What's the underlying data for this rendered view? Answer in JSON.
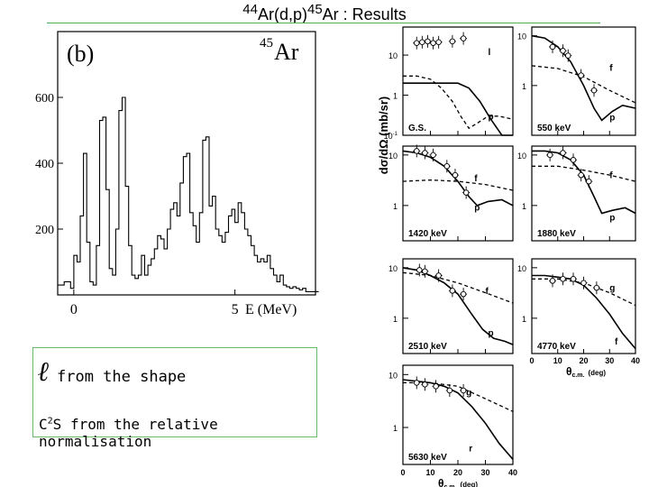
{
  "title": {
    "pre": "44",
    "a": "Ar(d,p)",
    "sup": "45",
    "b": "Ar : Results"
  },
  "notes": {
    "l_symbol": "ℓ",
    "l_text": "from the shape",
    "c2s_pre": "C",
    "c2s_sup": "2",
    "c2s_text": "S from the relative normalisation"
  },
  "colors": {
    "accent": "#4caf50"
  },
  "chart_data": [
    {
      "type": "line",
      "panel_label": "(b)",
      "isotope": {
        "mass": "45",
        "element": "Ar"
      },
      "xlabel": "E (MeV)",
      "x_ticks": [
        "0",
        "5"
      ],
      "y_ticks": [
        200,
        400,
        600
      ],
      "xlim": [
        -0.5,
        7.5
      ],
      "ylim": [
        0,
        800
      ],
      "series": [
        {
          "x": [
            -0.5,
            -0.3,
            -0.1,
            0.0,
            0.1,
            0.2,
            0.3,
            0.4,
            0.5,
            0.6,
            0.7,
            0.8,
            0.9,
            1.0,
            1.1,
            1.2,
            1.3,
            1.4,
            1.5,
            1.6,
            1.7,
            1.8,
            1.9,
            2.0,
            2.1,
            2.2,
            2.3,
            2.4,
            2.5,
            2.6,
            2.7,
            2.8,
            2.9,
            3.0,
            3.1,
            3.2,
            3.3,
            3.4,
            3.5,
            3.6,
            3.7,
            3.8,
            3.9,
            4.0,
            4.1,
            4.2,
            4.3,
            4.4,
            4.5,
            4.6,
            4.7,
            4.8,
            4.9,
            5.0,
            5.1,
            5.2,
            5.3,
            5.4,
            5.5,
            5.6,
            5.7,
            5.8,
            5.9,
            6.0,
            6.1,
            6.2,
            6.3,
            6.4,
            6.5,
            6.6,
            6.7,
            6.8,
            6.9,
            7.0,
            7.1,
            7.2,
            7.3,
            7.4
          ],
          "y": [
            30,
            40,
            20,
            120,
            100,
            240,
            430,
            160,
            40,
            30,
            150,
            530,
            540,
            320,
            80,
            60,
            200,
            560,
            600,
            330,
            150,
            60,
            50,
            60,
            120,
            60,
            90,
            110,
            140,
            180,
            170,
            140,
            200,
            260,
            280,
            240,
            340,
            420,
            430,
            250,
            210,
            160,
            250,
            470,
            480,
            270,
            300,
            200,
            180,
            160,
            190,
            240,
            260,
            220,
            280,
            250,
            200,
            180,
            150,
            120,
            100,
            110,
            100,
            120,
            80,
            60,
            40,
            60,
            30,
            25,
            20,
            25,
            20,
            15,
            20,
            10,
            10,
            10
          ]
        }
      ]
    },
    {
      "type": "scatter",
      "ylabel": "dσ/dΩ (mb/sr)",
      "xlabel_sym": "θ",
      "xlabel_sub": "c.m.",
      "xlabel_unit": "(deg)",
      "x_ticks": [
        0,
        10,
        20,
        30,
        40
      ],
      "xlim": [
        0,
        40
      ],
      "y_scale": "log",
      "panels": [
        {
          "state": "G.S.",
          "ylim": [
            0.1,
            50
          ],
          "y_ticks": [
            "10",
            "1",
            "10^-1"
          ],
          "curve_labels": [
            {
              "text": "l",
              "x": 31,
              "y": 10
            },
            {
              "text": "p",
              "x": 31,
              "y": 0.25
            }
          ],
          "solid": [
            [
              0,
              2.0
            ],
            [
              5,
              2.0
            ],
            [
              10,
              2.0
            ],
            [
              15,
              2.0
            ],
            [
              20,
              2.0
            ],
            [
              24,
              1.5
            ],
            [
              28,
              0.7
            ],
            [
              32,
              0.25
            ],
            [
              36,
              0.1
            ],
            [
              40,
              0.1
            ]
          ],
          "dashed": [
            [
              0,
              3.0
            ],
            [
              5,
              3.0
            ],
            [
              10,
              2.5
            ],
            [
              14,
              1.5
            ],
            [
              18,
              0.7
            ],
            [
              21,
              0.3
            ],
            [
              24,
              0.15
            ],
            [
              27,
              0.2
            ],
            [
              31,
              0.3
            ],
            [
              35,
              0.3
            ],
            [
              40,
              0.25
            ]
          ],
          "points": [
            [
              5,
              20
            ],
            [
              7,
              21
            ],
            [
              9,
              22
            ],
            [
              11,
              20
            ],
            [
              13,
              21
            ],
            [
              18,
              22
            ],
            [
              22,
              26
            ]
          ]
        },
        {
          "state": "550 keV",
          "ylim": [
            0.1,
            15
          ],
          "y_ticks": [
            "10",
            "1"
          ],
          "curve_labels": [
            {
              "text": "f",
              "x": 30,
              "y": 2.0
            },
            {
              "text": "p",
              "x": 30,
              "y": 0.2
            }
          ],
          "solid": [
            [
              0,
              10
            ],
            [
              5,
              9
            ],
            [
              10,
              6
            ],
            [
              15,
              3
            ],
            [
              20,
              1.0
            ],
            [
              24,
              0.35
            ],
            [
              27,
              0.2
            ],
            [
              31,
              0.3
            ],
            [
              35,
              0.4
            ],
            [
              40,
              0.35
            ]
          ],
          "dashed": [
            [
              0,
              2.5
            ],
            [
              10,
              2.2
            ],
            [
              20,
              1.5
            ],
            [
              25,
              1.1
            ],
            [
              30,
              0.8
            ],
            [
              35,
              0.6
            ],
            [
              40,
              0.45
            ]
          ],
          "points": [
            [
              8,
              6
            ],
            [
              12,
              5
            ],
            [
              14,
              4
            ],
            [
              19,
              1.6
            ],
            [
              24,
              0.8
            ]
          ]
        },
        {
          "state": "1420 keV",
          "ylim": [
            0.2,
            15
          ],
          "y_ticks": [
            "10",
            "1"
          ],
          "curve_labels": [
            {
              "text": "f",
              "x": 26,
              "y": 3.0
            },
            {
              "text": "p",
              "x": 26,
              "y": 0.8
            }
          ],
          "solid": [
            [
              0,
              12
            ],
            [
              5,
              11
            ],
            [
              10,
              9
            ],
            [
              15,
              6
            ],
            [
              20,
              3
            ],
            [
              24,
              1.5
            ],
            [
              27,
              1.0
            ],
            [
              31,
              1.2
            ],
            [
              36,
              1.3
            ],
            [
              40,
              1.0
            ]
          ],
          "dashed": [
            [
              0,
              3.0
            ],
            [
              10,
              3.2
            ],
            [
              20,
              3.0
            ],
            [
              30,
              2.6
            ],
            [
              40,
              2.0
            ]
          ],
          "points": [
            [
              5,
              12
            ],
            [
              8,
              11
            ],
            [
              11,
              10
            ],
            [
              16,
              6
            ],
            [
              19,
              4
            ],
            [
              23,
              1.8
            ]
          ]
        },
        {
          "state": "1880 keV",
          "ylim": [
            0.2,
            15
          ],
          "y_ticks": [
            "10",
            "1"
          ],
          "curve_labels": [
            {
              "text": "f",
              "x": 30,
              "y": 3.5
            },
            {
              "text": "p",
              "x": 30,
              "y": 0.5
            }
          ],
          "solid": [
            [
              0,
              12
            ],
            [
              5,
              12
            ],
            [
              10,
              11
            ],
            [
              15,
              8
            ],
            [
              20,
              4
            ],
            [
              24,
              1.5
            ],
            [
              27,
              0.7
            ],
            [
              31,
              0.8
            ],
            [
              36,
              0.9
            ],
            [
              40,
              0.7
            ]
          ],
          "dashed": [
            [
              0,
              6
            ],
            [
              10,
              6
            ],
            [
              20,
              5
            ],
            [
              30,
              4
            ],
            [
              40,
              3
            ]
          ],
          "points": [
            [
              7,
              10
            ],
            [
              12,
              11
            ],
            [
              16,
              8
            ],
            [
              19,
              4
            ],
            [
              22,
              3
            ]
          ]
        },
        {
          "state": "2510 keV",
          "ylim": [
            0.2,
            15
          ],
          "y_ticks": [
            "10",
            "1"
          ],
          "curve_labels": [
            {
              "text": "f",
              "x": 30,
              "y": 3.0
            },
            {
              "text": "p",
              "x": 31,
              "y": 0.45
            }
          ],
          "solid": [
            [
              0,
              10
            ],
            [
              5,
              9
            ],
            [
              10,
              7
            ],
            [
              15,
              5
            ],
            [
              20,
              3
            ],
            [
              25,
              1.2
            ],
            [
              29,
              0.6
            ],
            [
              33,
              0.4
            ],
            [
              37,
              0.35
            ],
            [
              40,
              0.3
            ]
          ],
          "dashed": [
            [
              0,
              8
            ],
            [
              10,
              7
            ],
            [
              20,
              5
            ],
            [
              30,
              3.2
            ],
            [
              40,
              2.0
            ]
          ],
          "points": [
            [
              6,
              9
            ],
            [
              8,
              8.5
            ],
            [
              13,
              7
            ],
            [
              18,
              3.5
            ],
            [
              22,
              3
            ]
          ]
        },
        {
          "state": "4770 keV",
          "ylim": [
            0.2,
            15
          ],
          "y_ticks": [
            "10",
            "1"
          ],
          "curve_labels": [
            {
              "text": "g",
              "x": 30,
              "y": 3.5
            },
            {
              "text": "f",
              "x": 32,
              "y": 0.3
            }
          ],
          "solid": [
            [
              0,
              7
            ],
            [
              5,
              7
            ],
            [
              10,
              6.5
            ],
            [
              15,
              6
            ],
            [
              20,
              4.5
            ],
            [
              25,
              2.5
            ],
            [
              30,
              1.2
            ],
            [
              35,
              0.5
            ],
            [
              40,
              0.25
            ]
          ],
          "dashed": [
            [
              0,
              6
            ],
            [
              10,
              6
            ],
            [
              20,
              5
            ],
            [
              30,
              3.2
            ],
            [
              40,
              1.8
            ]
          ],
          "points": [
            [
              8,
              5.5
            ],
            [
              12,
              6
            ],
            [
              16,
              6
            ],
            [
              20,
              5
            ],
            [
              25,
              4
            ]
          ]
        },
        {
          "state": "5630 keV",
          "ylim": [
            0.2,
            15
          ],
          "y_ticks": [
            "10",
            "1"
          ],
          "curve_labels": [
            {
              "text": "g",
              "x": 23,
              "y": 4.0
            },
            {
              "text": "r",
              "x": 24,
              "y": 0.35
            }
          ],
          "solid": [
            [
              0,
              8
            ],
            [
              10,
              7
            ],
            [
              15,
              6
            ],
            [
              20,
              4.5
            ],
            [
              25,
              2.5
            ],
            [
              30,
              1.2
            ],
            [
              35,
              0.5
            ],
            [
              40,
              0.25
            ]
          ],
          "dashed": [
            [
              0,
              7
            ],
            [
              10,
              7
            ],
            [
              20,
              6
            ],
            [
              30,
              3.5
            ],
            [
              40,
              2.0
            ]
          ],
          "points": [
            [
              5,
              7
            ],
            [
              8,
              6.5
            ],
            [
              12,
              6
            ],
            [
              17,
              5
            ],
            [
              22,
              5
            ]
          ]
        }
      ]
    }
  ]
}
